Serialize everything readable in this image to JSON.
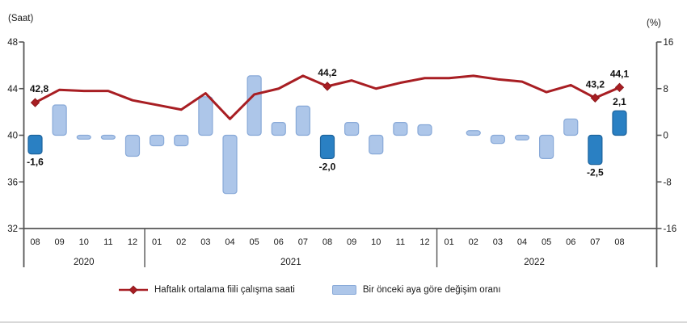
{
  "chart_data": {
    "type": "line+bar",
    "months": [
      "08",
      "09",
      "10",
      "11",
      "12",
      "01",
      "02",
      "03",
      "04",
      "05",
      "06",
      "07",
      "08",
      "09",
      "10",
      "11",
      "12",
      "01",
      "02",
      "03",
      "04",
      "05",
      "06",
      "07",
      "08"
    ],
    "year_groups": [
      {
        "label": "2020",
        "count": 5
      },
      {
        "label": "2021",
        "count": 12
      },
      {
        "label": "2022",
        "count": 8
      }
    ],
    "left_axis": {
      "title": "(Saat)",
      "ticks": [
        "48",
        "44",
        "40",
        "36",
        "32"
      ],
      "range": [
        32,
        48
      ]
    },
    "right_axis": {
      "title": "(%)",
      "ticks": [
        "16",
        "8",
        "0",
        "-8",
        "-16"
      ],
      "range": [
        -16,
        16
      ]
    },
    "line_series": {
      "name": "Haftalık ortalama fiili çalışma saati",
      "values": [
        42.8,
        43.9,
        43.8,
        43.8,
        43.0,
        42.6,
        42.2,
        43.6,
        41.4,
        43.5,
        44.0,
        45.1,
        44.2,
        44.7,
        44.0,
        44.5,
        44.9,
        44.9,
        45.1,
        44.8,
        44.6,
        43.7,
        44.3,
        43.2,
        44.1
      ]
    },
    "bar_series": {
      "name": "Bir önceki aya göre değişim oranı",
      "values": [
        -1.6,
        2.6,
        -0.2,
        -0.1,
        -1.8,
        -0.9,
        -0.9,
        3.3,
        -5.0,
        5.1,
        1.1,
        2.5,
        -2.0,
        1.1,
        -1.6,
        1.1,
        0.9,
        0.0,
        0.4,
        -0.7,
        -0.4,
        -2.0,
        1.4,
        -2.5,
        2.1
      ],
      "highlight_indices": [
        0,
        12,
        23,
        24
      ]
    },
    "labeled_points": [
      {
        "index": 0,
        "line_label": "42,8",
        "bar_label": "-1,6"
      },
      {
        "index": 12,
        "line_label": "44,2",
        "bar_label": "-2,0"
      },
      {
        "index": 23,
        "line_label": "43,2",
        "bar_label": "-2,5"
      },
      {
        "index": 24,
        "line_label": "44,1",
        "bar_label": "2,1"
      }
    ],
    "colors": {
      "line": "#a81e23",
      "marker": "#a81e23",
      "marker_border": "#8c181c",
      "bar_fill": "#adc6e9",
      "bar_border": "#88a9d8",
      "bar_highlight_fill": "#2a80c3",
      "bar_highlight_border": "#1d639c",
      "axis": "#555555",
      "tick_text": "#1a1a1a",
      "label_text": "#111111"
    },
    "grid": "off",
    "legend_position": "bottom"
  },
  "legend": {
    "line_label": "Haftalık ortalama fiili çalışma saati",
    "bar_label": "Bir önceki aya göre değişim oranı"
  }
}
